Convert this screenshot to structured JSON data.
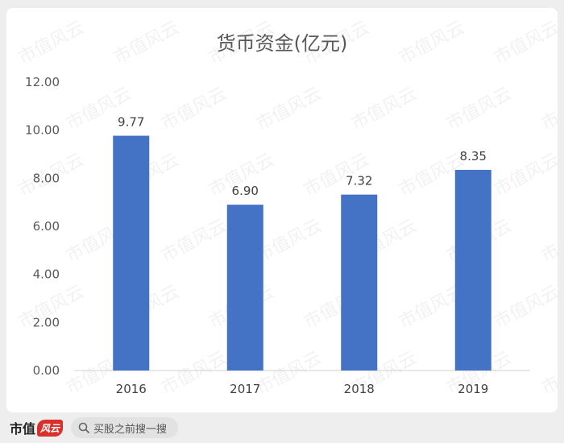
{
  "chart_data": {
    "type": "bar",
    "title": "货币资金(亿元)",
    "categories": [
      "2016",
      "2017",
      "2018",
      "2019"
    ],
    "values": [
      9.77,
      6.9,
      7.32,
      8.35
    ],
    "data_labels": [
      "9.77",
      "6.90",
      "7.32",
      "8.35"
    ],
    "ylim": [
      0,
      12
    ],
    "yticks": [
      "0.00",
      "2.00",
      "4.00",
      "6.00",
      "8.00",
      "10.00",
      "12.00"
    ],
    "bar_color": "#4472c4",
    "grid": false,
    "legend": "none"
  },
  "watermark": {
    "text": "市值风云"
  },
  "footer": {
    "brand_text": "市值",
    "brand_mark": "风云",
    "search_text": "买股之前搜一搜"
  }
}
